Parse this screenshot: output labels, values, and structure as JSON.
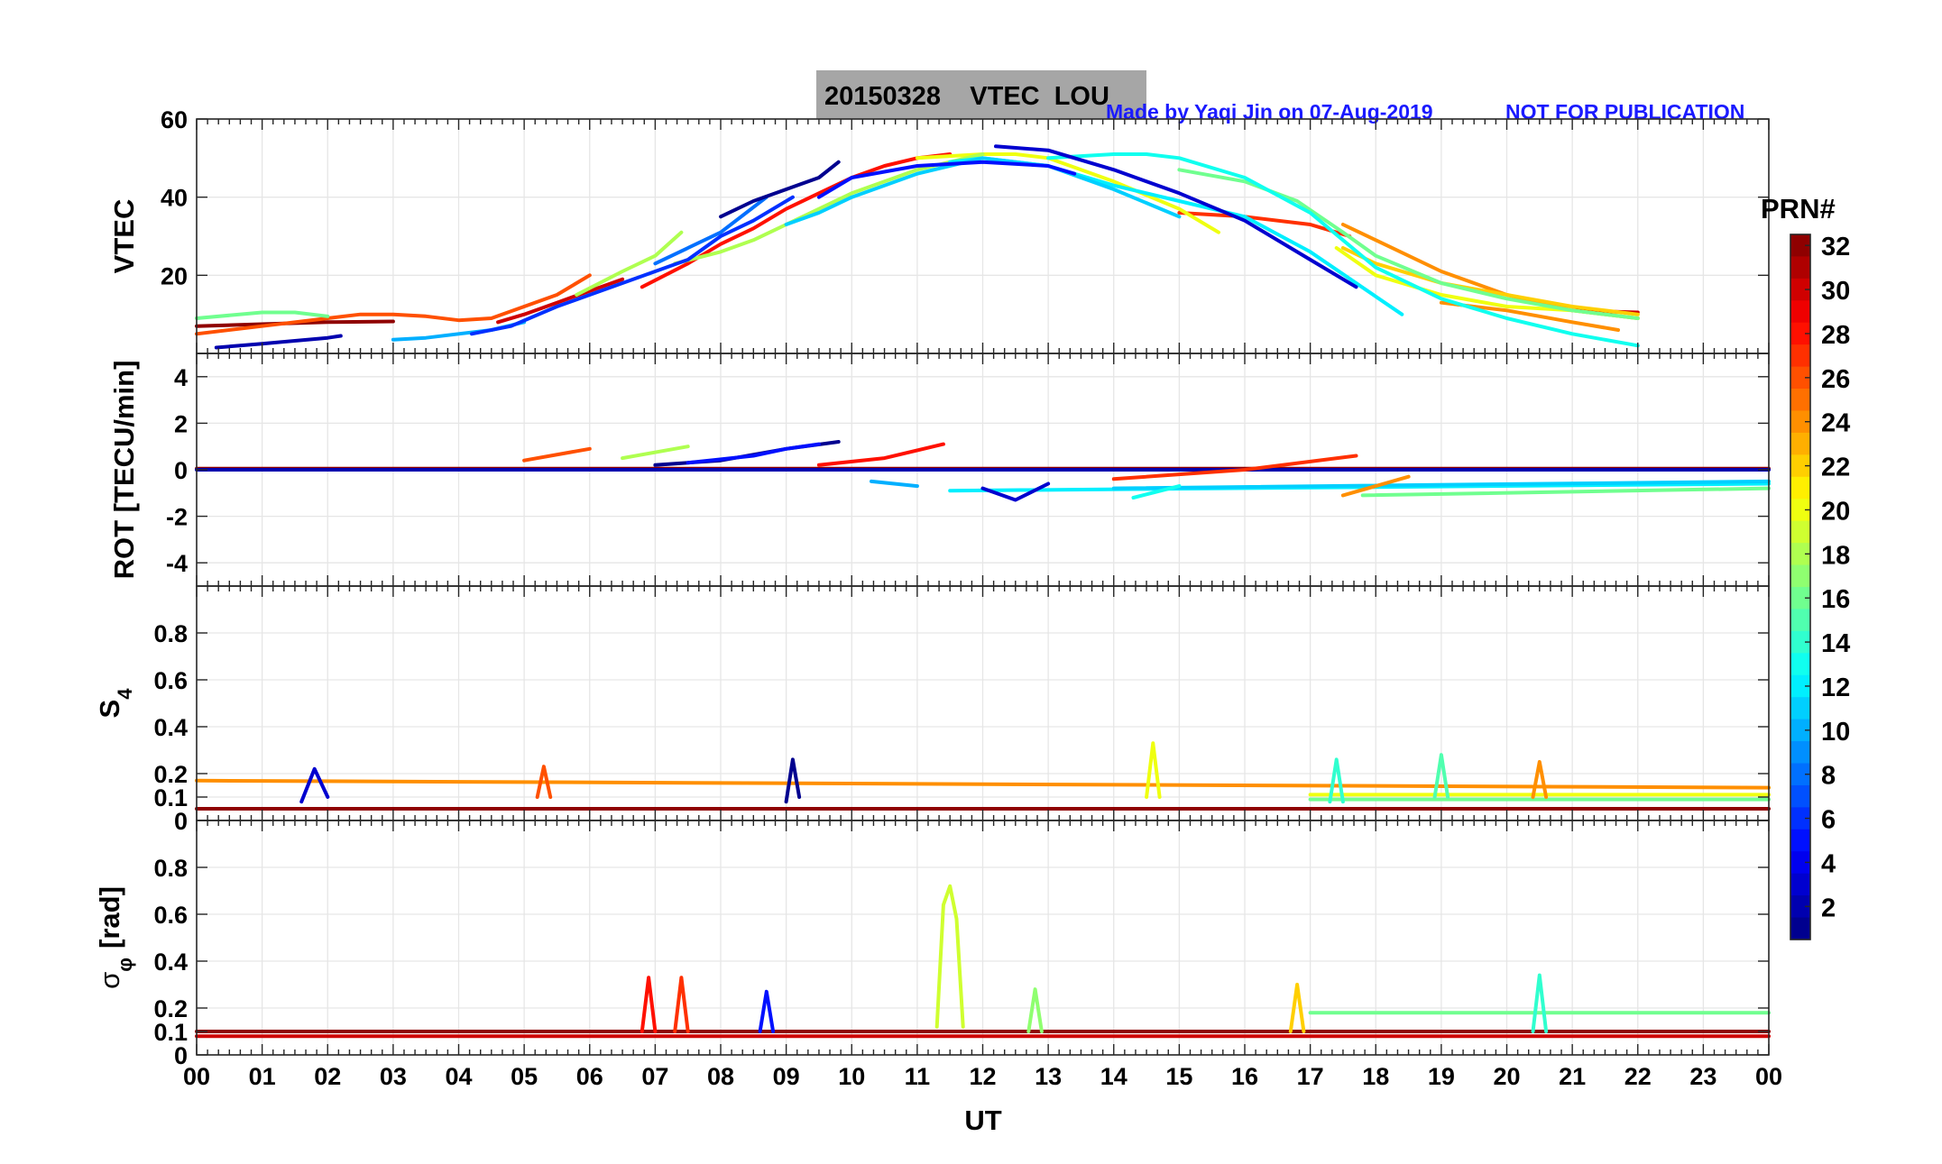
{
  "header": {
    "title": "20150328    VTEC  LOU",
    "credit": "Made by Yaqi Jin on 07-Aug-2019",
    "notice": "NOT FOR PUBLICATION"
  },
  "colors": {
    "title_box": "#a6a6a6",
    "credit_text": "#1a1aff",
    "axis": "#262626",
    "grid": "#e6e6e6"
  },
  "x_axis": {
    "label": "UT",
    "range": [
      0,
      24
    ],
    "ticks": [
      "00",
      "01",
      "02",
      "03",
      "04",
      "05",
      "06",
      "07",
      "08",
      "09",
      "10",
      "11",
      "12",
      "13",
      "14",
      "15",
      "16",
      "17",
      "18",
      "19",
      "20",
      "21",
      "22",
      "23",
      "00"
    ]
  },
  "colorbar": {
    "label": "PRN#",
    "colormap": "jet",
    "range": [
      1,
      32
    ],
    "ticks": [
      "2",
      "4",
      "6",
      "8",
      "10",
      "12",
      "14",
      "16",
      "18",
      "20",
      "22",
      "24",
      "26",
      "28",
      "30",
      "32"
    ]
  },
  "panels": [
    {
      "id": "vtec",
      "ylabel": "VTEC",
      "ylim": [
        0,
        60
      ],
      "yticks": [
        0,
        20,
        40,
        60
      ],
      "yticklabels": [
        "",
        "20",
        "40",
        "60"
      ]
    },
    {
      "id": "rot",
      "ylabel": "ROT [TECU/min]",
      "ylim": [
        -5,
        5
      ],
      "yticks": [
        -4,
        -2,
        0,
        2,
        4
      ],
      "yticklabels": [
        "-4",
        "-2",
        "0",
        "2",
        "4"
      ]
    },
    {
      "id": "s4",
      "ylabel": "S",
      "ylabel_sub": "4",
      "ylim": [
        0,
        1
      ],
      "yticks": [
        0,
        0.1,
        0.2,
        0.4,
        0.6,
        0.8
      ],
      "yticklabels": [
        "0",
        "0.1",
        "0.2",
        "0.4",
        "0.6",
        "0.8"
      ]
    },
    {
      "id": "sigphi",
      "ylabel": "σ",
      "ylabel_sub": "φ",
      "ylabel_unit": "[rad]",
      "ylim": [
        0,
        1
      ],
      "yticks": [
        0,
        0.1,
        0.2,
        0.4,
        0.6,
        0.8
      ],
      "yticklabels": [
        "0",
        "0.1",
        "0.2",
        "0.4",
        "0.6",
        "0.8"
      ]
    }
  ],
  "chart_data": [
    {
      "type": "line",
      "panel": "vtec",
      "xlabel": "UT",
      "ylabel": "VTEC",
      "xlim": [
        0,
        24
      ],
      "ylim": [
        0,
        60
      ],
      "grid": true,
      "series": [
        {
          "prn": 32,
          "x": [
            0,
            1,
            2,
            3
          ],
          "y": [
            7,
            7.5,
            8,
            8.2
          ]
        },
        {
          "prn": 30,
          "x": [
            4.6,
            5,
            5.5,
            6,
            6.5
          ],
          "y": [
            8,
            10,
            13,
            16,
            19
          ]
        },
        {
          "prn": 28,
          "x": [
            6.8,
            7.5,
            8,
            8.5,
            9,
            9.5,
            10,
            10.5,
            11,
            11.5
          ],
          "y": [
            17,
            23,
            28,
            32,
            37,
            41,
            45,
            48,
            50,
            51
          ]
        },
        {
          "prn": 26,
          "x": [
            0,
            1,
            2,
            2.5,
            3,
            3.5,
            4,
            4.5,
            5,
            5.5,
            6
          ],
          "y": [
            5,
            7,
            9,
            10,
            10,
            9.5,
            8.5,
            9,
            12,
            15,
            20
          ]
        },
        {
          "prn": 27,
          "x": [
            15,
            16,
            17,
            17.6
          ],
          "y": [
            36,
            35,
            33,
            30
          ]
        },
        {
          "prn": 30,
          "x": [
            21,
            22
          ],
          "y": [
            11,
            10.5
          ]
        },
        {
          "prn": 24,
          "x": [
            17.5,
            18,
            19,
            20,
            21,
            22
          ],
          "y": [
            33,
            29,
            21,
            15,
            11,
            9
          ]
        },
        {
          "prn": 24,
          "x": [
            19,
            20,
            21,
            21.7
          ],
          "y": [
            13,
            11,
            8,
            6
          ]
        },
        {
          "prn": 22,
          "x": [
            17.5,
            18,
            19,
            20,
            21,
            22
          ],
          "y": [
            27,
            23,
            18,
            15,
            12,
            10
          ]
        },
        {
          "prn": 20,
          "x": [
            11,
            12,
            12.5,
            13,
            14,
            15,
            15.6
          ],
          "y": [
            50,
            51,
            51,
            50,
            44,
            37,
            31
          ]
        },
        {
          "prn": 20,
          "x": [
            17.4,
            18,
            19,
            20,
            21,
            22
          ],
          "y": [
            27,
            20,
            15,
            12,
            11,
            9
          ]
        },
        {
          "prn": 18,
          "x": [
            7.3,
            8,
            8.5,
            9,
            10,
            11,
            12
          ],
          "y": [
            23,
            26,
            29,
            33,
            41,
            47,
            51
          ]
        },
        {
          "prn": 18,
          "x": [
            5.8,
            6.5,
            7,
            7.4
          ],
          "y": [
            15,
            21,
            25,
            31
          ]
        },
        {
          "prn": 16,
          "x": [
            15,
            16,
            16.8,
            17.5,
            18,
            19,
            20,
            21,
            22
          ],
          "y": [
            47,
            44,
            39,
            31,
            25,
            18,
            14,
            11,
            9
          ]
        },
        {
          "prn": 16,
          "x": [
            0,
            1,
            1.5,
            2
          ],
          "y": [
            9,
            10.5,
            10.5,
            9.5
          ]
        },
        {
          "prn": 13,
          "x": [
            13,
            14,
            14.5,
            15,
            16,
            17,
            17.5,
            18,
            19,
            20,
            21,
            22
          ],
          "y": [
            50,
            51,
            51,
            50,
            45,
            36,
            29,
            22,
            14,
            9,
            5,
            2
          ]
        },
        {
          "prn": 12,
          "x": [
            11.5,
            12,
            13,
            14,
            15,
            16,
            17,
            18.4
          ],
          "y": [
            49,
            50,
            48,
            43,
            39,
            35,
            26,
            10
          ]
        },
        {
          "prn": 11,
          "x": [
            9,
            9.5,
            10,
            11,
            12,
            13,
            14,
            15
          ],
          "y": [
            33,
            36,
            40,
            46,
            50,
            48,
            42,
            35
          ]
        },
        {
          "prn": 10,
          "x": [
            3,
            3.5,
            4,
            4.5,
            5
          ],
          "y": [
            3.5,
            4,
            5,
            6,
            8
          ]
        },
        {
          "prn": 8,
          "x": [
            7,
            7.5,
            8,
            8.7
          ],
          "y": [
            23,
            27,
            31,
            40
          ]
        },
        {
          "prn": 6,
          "x": [
            4.2,
            4.8,
            5.5,
            6,
            7,
            7.5,
            8,
            8.5,
            9.1
          ],
          "y": [
            5,
            7,
            12,
            15,
            21,
            24,
            30,
            34,
            40
          ]
        },
        {
          "prn": 5,
          "x": [
            9.5,
            10,
            11,
            12,
            13,
            13.4
          ],
          "y": [
            40,
            45,
            48,
            49,
            48,
            46
          ]
        },
        {
          "prn": 3,
          "x": [
            12.2,
            13,
            14,
            15,
            16,
            17,
            17.7
          ],
          "y": [
            53,
            52,
            47,
            41,
            34,
            24,
            17
          ]
        },
        {
          "prn": 2,
          "x": [
            0.3,
            1,
            2,
            2.2
          ],
          "y": [
            1.5,
            2.5,
            4,
            4.5
          ]
        },
        {
          "prn": 1,
          "x": [
            8,
            8.5,
            9,
            9.5,
            9.8
          ],
          "y": [
            35,
            39,
            42,
            45,
            49
          ]
        }
      ]
    },
    {
      "type": "line",
      "panel": "rot",
      "xlabel": "UT",
      "ylabel": "ROT [TECU/min]",
      "xlim": [
        0,
        24
      ],
      "ylim": [
        -5,
        5
      ],
      "grid": true,
      "series": [
        {
          "prn": 32,
          "x": [
            0,
            24
          ],
          "y": [
            0.05,
            0.05
          ]
        },
        {
          "prn": 2,
          "x": [
            0,
            24
          ],
          "y": [
            0,
            0
          ]
        },
        {
          "prn": 12,
          "x": [
            11.5,
            24
          ],
          "y": [
            -0.9,
            -0.6
          ]
        },
        {
          "prn": 16,
          "x": [
            17.8,
            24
          ],
          "y": [
            -1.1,
            -0.8
          ]
        },
        {
          "prn": 11,
          "x": [
            14,
            24
          ],
          "y": [
            -0.8,
            -0.5
          ]
        },
        {
          "prn": 1,
          "x": [
            7,
            8,
            9,
            9.8
          ],
          "y": [
            0.2,
            0.4,
            0.9,
            1.2
          ]
        },
        {
          "prn": 5,
          "x": [
            7.5,
            8.5,
            9,
            9.5
          ],
          "y": [
            0.3,
            0.6,
            0.9,
            1.1
          ]
        },
        {
          "prn": 28,
          "x": [
            9.5,
            10.5,
            11.4
          ],
          "y": [
            0.2,
            0.5,
            1.1
          ]
        },
        {
          "prn": 18,
          "x": [
            6.5,
            7.5
          ],
          "y": [
            0.5,
            1.0
          ]
        },
        {
          "prn": 26,
          "x": [
            5,
            6
          ],
          "y": [
            0.4,
            0.9
          ]
        },
        {
          "prn": 3,
          "x": [
            12,
            12.5,
            13
          ],
          "y": [
            -0.8,
            -1.3,
            -0.6
          ]
        },
        {
          "prn": 10,
          "x": [
            10.3,
            11
          ],
          "y": [
            -0.5,
            -0.7
          ]
        },
        {
          "prn": 27,
          "x": [
            14,
            16,
            17.7
          ],
          "y": [
            -0.4,
            0,
            0.6
          ]
        },
        {
          "prn": 24,
          "x": [
            17.5,
            18.5
          ],
          "y": [
            -1.1,
            -0.3
          ]
        },
        {
          "prn": 13,
          "x": [
            14.3,
            15
          ],
          "y": [
            -1.2,
            -0.7
          ]
        }
      ]
    },
    {
      "type": "line",
      "panel": "s4",
      "xlabel": "UT",
      "ylabel": "S4",
      "xlim": [
        0,
        24
      ],
      "ylim": [
        0,
        1
      ],
      "grid": true,
      "series": [
        {
          "prn": 24,
          "x": [
            0,
            24
          ],
          "y": [
            0.17,
            0.14
          ]
        },
        {
          "prn": 32,
          "x": [
            0,
            24
          ],
          "y": [
            0.05,
            0.05
          ]
        },
        {
          "prn": 20,
          "x": [
            17,
            24
          ],
          "y": [
            0.11,
            0.11
          ]
        },
        {
          "prn": 16,
          "x": [
            17,
            24
          ],
          "y": [
            0.09,
            0.09
          ]
        },
        {
          "prn": 1,
          "x": [
            9.0,
            9.1,
            9.2
          ],
          "y": [
            0.08,
            0.26,
            0.1
          ]
        },
        {
          "prn": 3,
          "x": [
            1.6,
            1.8,
            2.0
          ],
          "y": [
            0.08,
            0.22,
            0.1
          ]
        },
        {
          "prn": 20,
          "x": [
            14.5,
            14.6,
            14.7
          ],
          "y": [
            0.1,
            0.33,
            0.1
          ]
        },
        {
          "prn": 15,
          "x": [
            18.9,
            19,
            19.1
          ],
          "y": [
            0.1,
            0.28,
            0.1
          ]
        },
        {
          "prn": 26,
          "x": [
            5.2,
            5.3,
            5.4
          ],
          "y": [
            0.1,
            0.23,
            0.1
          ]
        },
        {
          "prn": 24,
          "x": [
            20.4,
            20.5,
            20.6
          ],
          "y": [
            0.1,
            0.25,
            0.1
          ]
        },
        {
          "prn": 14,
          "x": [
            17.3,
            17.4,
            17.5
          ],
          "y": [
            0.08,
            0.26,
            0.08
          ]
        }
      ]
    },
    {
      "type": "line",
      "panel": "sigphi",
      "xlabel": "UT",
      "ylabel": "σφ [rad]",
      "xlim": [
        0,
        24
      ],
      "ylim": [
        0,
        1
      ],
      "grid": true,
      "series": [
        {
          "prn": 19,
          "x": [
            11.3,
            11.4,
            11.5,
            11.6,
            11.7
          ],
          "y": [
            0.12,
            0.64,
            0.72,
            0.58,
            0.12
          ]
        },
        {
          "prn": 32,
          "x": [
            0,
            24
          ],
          "y": [
            0.1,
            0.1
          ]
        },
        {
          "prn": 30,
          "x": [
            0,
            24
          ],
          "y": [
            0.08,
            0.08
          ]
        },
        {
          "prn": 16,
          "x": [
            17,
            24
          ],
          "y": [
            0.18,
            0.18
          ]
        },
        {
          "prn": 27,
          "x": [
            7.3,
            7.4,
            7.5
          ],
          "y": [
            0.1,
            0.33,
            0.1
          ]
        },
        {
          "prn": 28,
          "x": [
            6.8,
            6.9,
            7.0
          ],
          "y": [
            0.1,
            0.33,
            0.1
          ]
        },
        {
          "prn": 5,
          "x": [
            8.6,
            8.7,
            8.8
          ],
          "y": [
            0.1,
            0.27,
            0.1
          ]
        },
        {
          "prn": 14,
          "x": [
            20.4,
            20.5,
            20.6
          ],
          "y": [
            0.1,
            0.34,
            0.1
          ]
        },
        {
          "prn": 17,
          "x": [
            12.7,
            12.8,
            12.9
          ],
          "y": [
            0.1,
            0.28,
            0.1
          ]
        },
        {
          "prn": 22,
          "x": [
            16.7,
            16.8,
            16.9
          ],
          "y": [
            0.1,
            0.3,
            0.1
          ]
        }
      ]
    }
  ]
}
